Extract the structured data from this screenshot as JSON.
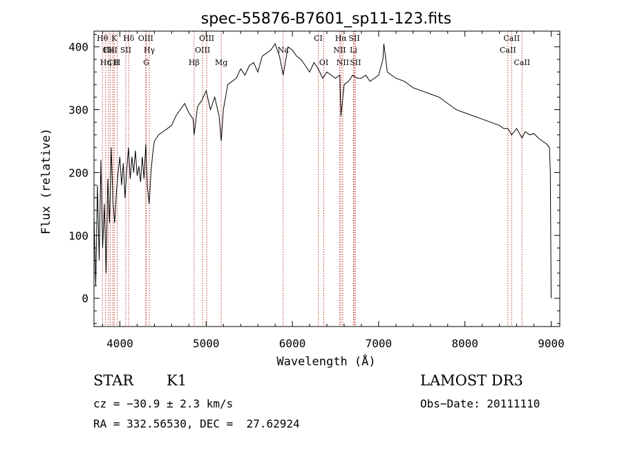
{
  "chart_data": {
    "type": "line",
    "title": "spec-55876-B7601_sp11-123.fits",
    "xlabel": "Wavelength (Å)",
    "ylabel": "Flux (relative)",
    "xlim": [
      3700,
      9100
    ],
    "ylim": [
      -45,
      425
    ],
    "xticks": [
      4000,
      5000,
      6000,
      7000,
      8000,
      9000
    ],
    "yticks": [
      0,
      100,
      200,
      300,
      400
    ],
    "series": [
      {
        "name": "flux",
        "x": [
          3700,
          3720,
          3740,
          3760,
          3780,
          3800,
          3820,
          3840,
          3860,
          3880,
          3900,
          3920,
          3940,
          3960,
          3980,
          4000,
          4020,
          4040,
          4060,
          4080,
          4100,
          4120,
          4140,
          4160,
          4180,
          4200,
          4220,
          4240,
          4260,
          4280,
          4300,
          4320,
          4340,
          4360,
          4380,
          4400,
          4450,
          4500,
          4550,
          4600,
          4650,
          4700,
          4750,
          4800,
          4850,
          4861,
          4900,
          4950,
          5000,
          5050,
          5100,
          5150,
          5175,
          5200,
          5250,
          5300,
          5350,
          5400,
          5450,
          5500,
          5550,
          5600,
          5650,
          5700,
          5750,
          5800,
          5850,
          5893,
          5950,
          6000,
          6050,
          6100,
          6150,
          6200,
          6250,
          6300,
          6350,
          6400,
          6450,
          6500,
          6550,
          6563,
          6600,
          6650,
          6700,
          6750,
          6800,
          6850,
          6900,
          6950,
          7000,
          7050,
          7060,
          7100,
          7150,
          7200,
          7300,
          7400,
          7500,
          7600,
          7700,
          7800,
          7900,
          8000,
          8100,
          8200,
          8300,
          8400,
          8450,
          8498,
          8542,
          8600,
          8662,
          8700,
          8750,
          8800,
          8850,
          8900,
          8950,
          8980,
          8990,
          9000
        ],
        "values": [
          130,
          20,
          180,
          60,
          220,
          80,
          150,
          40,
          190,
          120,
          240,
          150,
          120,
          170,
          200,
          225,
          180,
          215,
          160,
          205,
          240,
          190,
          225,
          200,
          235,
          195,
          210,
          185,
          225,
          190,
          245,
          175,
          150,
          200,
          230,
          250,
          260,
          265,
          270,
          275,
          290,
          300,
          310,
          295,
          285,
          260,
          305,
          315,
          330,
          300,
          320,
          290,
          250,
          300,
          340,
          345,
          350,
          365,
          355,
          370,
          375,
          360,
          385,
          390,
          395,
          405,
          385,
          355,
          400,
          395,
          385,
          380,
          370,
          360,
          375,
          365,
          350,
          360,
          355,
          350,
          355,
          290,
          340,
          345,
          355,
          350,
          350,
          355,
          345,
          350,
          355,
          380,
          405,
          360,
          355,
          350,
          345,
          335,
          330,
          325,
          320,
          310,
          300,
          295,
          290,
          285,
          280,
          275,
          270,
          270,
          260,
          270,
          255,
          265,
          260,
          262,
          255,
          250,
          245,
          240,
          200,
          0
        ]
      }
    ],
    "lines": [
      {
        "label": "Hθ",
        "wl": 3798,
        "row": 0
      },
      {
        "label": "Hη",
        "wl": 3835,
        "row": 2
      },
      {
        "label": "CII",
        "wl": 3868,
        "row": 1
      },
      {
        "label": "HeI",
        "wl": 3889,
        "row": 1
      },
      {
        "label": "CII",
        "wl": 3920,
        "row": 2
      },
      {
        "label": "K",
        "wl": 3934,
        "row": 0
      },
      {
        "label": "H",
        "wl": 3969,
        "row": 2
      },
      {
        "label": "SII",
        "wl": 4068,
        "row": 1
      },
      {
        "label": "Hδ",
        "wl": 4102,
        "row": 0
      },
      {
        "label": "OIII",
        "wl": 4300,
        "row": 0
      },
      {
        "label": "G",
        "wl": 4306,
        "row": 2
      },
      {
        "label": "Hγ",
        "wl": 4341,
        "row": 1
      },
      {
        "label": "Hβ",
        "wl": 4861,
        "row": 2
      },
      {
        "label": "OIII",
        "wl": 4959,
        "row": 1
      },
      {
        "label": "OIII",
        "wl": 5007,
        "row": 0
      },
      {
        "label": "Mg",
        "wl": 5175,
        "row": 2
      },
      {
        "label": "Na",
        "wl": 5893,
        "row": 1
      },
      {
        "label": "CI",
        "wl": 6300,
        "row": 0
      },
      {
        "label": "OI",
        "wl": 6364,
        "row": 2
      },
      {
        "label": "NII",
        "wl": 6548,
        "row": 1
      },
      {
        "label": "Hα",
        "wl": 6563,
        "row": 0
      },
      {
        "label": "NII",
        "wl": 6584,
        "row": 2
      },
      {
        "label": "Li",
        "wl": 6708,
        "row": 1
      },
      {
        "label": "SII",
        "wl": 6717,
        "row": 0
      },
      {
        "label": "SII",
        "wl": 6731,
        "row": 2
      },
      {
        "label": "CaII",
        "wl": 8498,
        "row": 1
      },
      {
        "label": "CaII",
        "wl": 8542,
        "row": 0
      },
      {
        "label": "CaII",
        "wl": 8662,
        "row": 2
      }
    ]
  },
  "info": {
    "class": "STAR",
    "subclass": "K1",
    "survey": "LAMOST DR3",
    "cz": "cz = −30.9 ± 2.3 km/s",
    "obs_date": "Obs−Date: 20111110",
    "coords": "RA = 332.56530, DEC =  27.62924"
  }
}
